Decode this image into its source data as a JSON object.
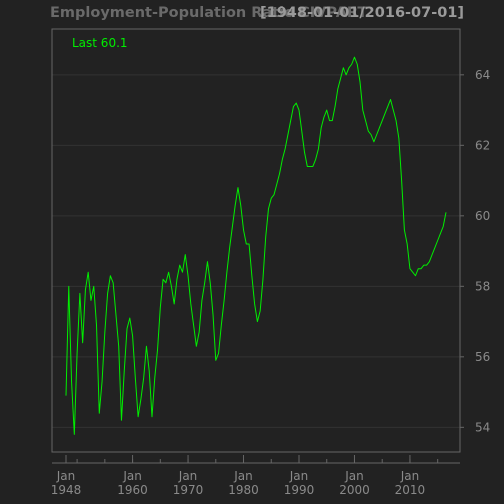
{
  "chart_data": {
    "type": "line",
    "title": "Employment-Population Ratio CIVPART",
    "subtitle": "[1948-01-01/2016-07-01]",
    "legend_label": "Last 60.1",
    "colors": {
      "background": "#222222",
      "panel": "#222222",
      "frame": "#666666",
      "grid": "#333333",
      "line": "#00ee00",
      "tick_text": "#8a8a8a"
    },
    "grid": true,
    "legend_position": "top-left",
    "xlim": [
      1948.0,
      2016.5
    ],
    "ylim": [
      53.3,
      65.3
    ],
    "y_ticks": [
      54,
      56,
      58,
      60,
      62,
      64
    ],
    "x_ticks": [
      {
        "year": 1948,
        "label": [
          "Jan",
          "1948"
        ]
      },
      {
        "year": 1960,
        "label": [
          "Jan",
          "1960"
        ]
      },
      {
        "year": 1970,
        "label": [
          "Jan",
          "1970"
        ]
      },
      {
        "year": 1980,
        "label": [
          "Jan",
          "1980"
        ]
      },
      {
        "year": 1990,
        "label": [
          "Jan",
          "1990"
        ]
      },
      {
        "year": 2000,
        "label": [
          "Jan",
          "2000"
        ]
      },
      {
        "year": 2010,
        "label": [
          "Jan",
          "2010"
        ]
      }
    ],
    "series": [
      {
        "x": [
          1948.0,
          1948.5,
          1949.0,
          1949.5,
          1950.0,
          1950.5,
          1951.0,
          1951.5,
          1952.0,
          1952.5,
          1953.0,
          1953.5,
          1954.0,
          1954.5,
          1955.0,
          1955.5,
          1956.0,
          1956.5,
          1957.0,
          1957.5,
          1958.0,
          1958.5,
          1959.0,
          1959.5,
          1960.0,
          1960.5,
          1961.0,
          1961.5,
          1962.0,
          1962.5,
          1963.0,
          1963.5,
          1964.0,
          1964.5,
          1965.0,
          1965.5,
          1966.0,
          1966.5,
          1967.0,
          1967.5,
          1968.0,
          1968.5,
          1969.0,
          1969.5,
          1970.0,
          1970.5,
          1971.0,
          1971.5,
          1972.0,
          1972.5,
          1973.0,
          1973.5,
          1974.0,
          1974.5,
          1975.0,
          1975.5,
          1976.0,
          1976.5,
          1977.0,
          1977.5,
          1978.0,
          1978.5,
          1979.0,
          1979.5,
          1980.0,
          1980.5,
          1981.0,
          1981.5,
          1982.0,
          1982.5,
          1983.0,
          1983.5,
          1984.0,
          1984.5,
          1985.0,
          1985.5,
          1986.0,
          1986.5,
          1987.0,
          1987.5,
          1988.0,
          1988.5,
          1989.0,
          1989.5,
          1990.0,
          1990.5,
          1991.0,
          1991.5,
          1992.0,
          1992.5,
          1993.0,
          1993.5,
          1994.0,
          1994.5,
          1995.0,
          1995.5,
          1996.0,
          1996.5,
          1997.0,
          1997.5,
          1998.0,
          1998.5,
          1999.0,
          1999.5,
          2000.0,
          2000.5,
          2001.0,
          2001.5,
          2002.0,
          2002.5,
          2003.0,
          2003.5,
          2004.0,
          2004.5,
          2005.0,
          2005.5,
          2006.0,
          2006.5,
          2007.0,
          2007.5,
          2008.0,
          2008.5,
          2009.0,
          2009.5,
          2010.0,
          2010.5,
          2011.0,
          2011.5,
          2012.0,
          2012.5,
          2013.0,
          2013.5,
          2014.0,
          2014.5,
          2015.0,
          2015.5,
          2016.0,
          2016.5
        ],
        "y": [
          54.9,
          58.0,
          55.3,
          53.8,
          56.1,
          57.8,
          56.4,
          57.9,
          58.4,
          57.6,
          58.0,
          56.9,
          54.4,
          55.3,
          56.7,
          57.8,
          58.3,
          58.1,
          57.2,
          56.3,
          54.2,
          55.6,
          56.8,
          57.1,
          56.6,
          55.4,
          54.3,
          54.8,
          55.4,
          56.3,
          55.6,
          54.3,
          55.4,
          56.2,
          57.4,
          58.2,
          58.1,
          58.4,
          58.0,
          57.5,
          58.2,
          58.6,
          58.4,
          58.9,
          58.3,
          57.5,
          56.9,
          56.3,
          56.7,
          57.6,
          58.1,
          58.7,
          58.1,
          57.2,
          55.9,
          56.1,
          56.9,
          57.6,
          58.4,
          59.1,
          59.7,
          60.3,
          60.8,
          60.3,
          59.6,
          59.2,
          59.2,
          58.3,
          57.5,
          57.0,
          57.3,
          58.2,
          59.4,
          60.2,
          60.5,
          60.6,
          60.9,
          61.2,
          61.6,
          61.9,
          62.3,
          62.7,
          63.1,
          63.2,
          63.0,
          62.4,
          61.8,
          61.4,
          61.4,
          61.4,
          61.6,
          61.9,
          62.5,
          62.8,
          63.0,
          62.7,
          62.7,
          63.1,
          63.6,
          63.9,
          64.2,
          64.0,
          64.2,
          64.3,
          64.5,
          64.3,
          63.8,
          63.0,
          62.7,
          62.4,
          62.3,
          62.1,
          62.3,
          62.5,
          62.7,
          62.9,
          63.1,
          63.3,
          63.0,
          62.7,
          62.2,
          61.0,
          59.6,
          59.2,
          58.5,
          58.4,
          58.3,
          58.5,
          58.5,
          58.6,
          58.6,
          58.7,
          58.9,
          59.1,
          59.3,
          59.5,
          59.7,
          60.1
        ]
      }
    ]
  }
}
